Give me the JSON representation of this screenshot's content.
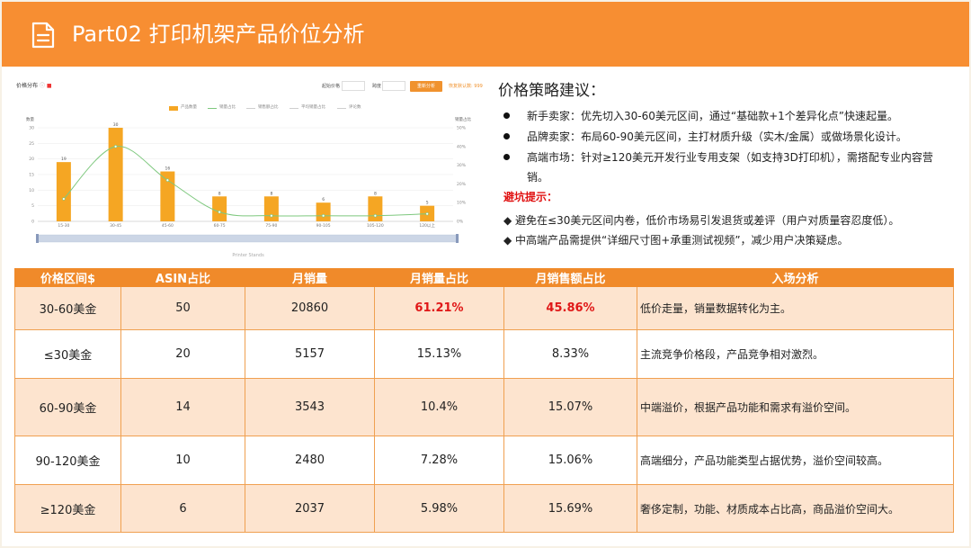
{
  "header": {
    "title": "Part02 打印机架产品价位分析",
    "icon": "document-icon"
  },
  "chart_panel": {
    "title": "价格分布",
    "controls": {
      "start_label": "起始价格",
      "span_label": "跨度",
      "button_label": "重新分析",
      "reset_link": "恢复默认数: 999"
    },
    "footer": "Printer Stands"
  },
  "chart_data": {
    "type": "bar",
    "categories": [
      "15-30",
      "30-45",
      "45-60",
      "60-75",
      "75-90",
      "90-105",
      "105-120",
      "120以上"
    ],
    "series": [
      {
        "name": "产品数量",
        "values": [
          19,
          30,
          16,
          8,
          8,
          6,
          8,
          5
        ],
        "data_labels": [
          "19",
          "30",
          "16",
          "8",
          "8",
          "6",
          "8",
          "5"
        ]
      },
      {
        "name": "销量占比",
        "values": [
          12,
          40,
          22,
          5,
          3,
          3,
          3,
          4
        ]
      }
    ],
    "legend_entries": [
      "产品数量",
      "销量占比",
      "销售额占比",
      "平均销量占比",
      "评论数"
    ],
    "ylabel": "数量",
    "y2label": "销量占比",
    "ylim": [
      0,
      30
    ],
    "y_ticks": [
      "0",
      "5",
      "10",
      "15",
      "20",
      "25",
      "30"
    ],
    "y2lim": [
      0,
      50
    ],
    "y2_ticks": [
      "0%",
      "10%",
      "20%",
      "30%",
      "40%",
      "50%"
    ],
    "legend_position": "top",
    "grid": true,
    "colors": {
      "bar": "#f5a623",
      "line": "#7ec87e"
    }
  },
  "advice": {
    "title": "价格策略建议：",
    "bullets": [
      "新手卖家：优先切入30-60美元区间，通过“基础款+1个差异化点”快速起量。",
      "品牌卖家：布局60-90美元区间，主打材质升级（实木/金属）或做场景化设计。",
      "高端市场：针对≥120美元开发行业专用支架（如支持3D打印机），需搭配专业内容营销。"
    ],
    "warning_title": "避坑提示：",
    "warnings": [
      "◆ 避免在≤30美元区间内卷，低价市场易引发退货或差评（用户对质量容忍度低）。",
      "◆ 中高端产品需提供“详细尺寸图+承重测试视频”，减少用户决策疑虑。"
    ]
  },
  "table": {
    "headers": [
      "价格区间$",
      "ASIN占比",
      "月销量",
      "月销量占比",
      "月销售额占比",
      "入场分析"
    ],
    "rows": [
      {
        "range": "30-60美金",
        "asin": "50",
        "sales": "20860",
        "sales_pct": "61.21%",
        "revenue_pct": "45.86%",
        "analysis": "低价走量，销量数据转化为主。"
      },
      {
        "range": "≤30美金",
        "asin": "20",
        "sales": "5157",
        "sales_pct": "15.13%",
        "revenue_pct": "8.33%",
        "analysis": "主流竞争价格段，产品竞争相对激烈。"
      },
      {
        "range": "60-90美金",
        "asin": "14",
        "sales": "3543",
        "sales_pct": "10.4%",
        "revenue_pct": "15.07%",
        "analysis": "中端溢价，根据产品功能和需求有溢价空间。"
      },
      {
        "range": "90-120美金",
        "asin": "10",
        "sales": "2480",
        "sales_pct": "7.28%",
        "revenue_pct": "15.06%",
        "analysis": "高端细分，产品功能类型占据优势，溢价空间较高。"
      },
      {
        "range": "≥120美金",
        "asin": "6",
        "sales": "2037",
        "sales_pct": "5.98%",
        "revenue_pct": "15.69%",
        "analysis": "奢侈定制，功能、材质成本占比高，商品溢价空间大。"
      }
    ],
    "colors": {
      "header": "#f08a2a",
      "odd_row": "#fde4cf",
      "highlight": "#e01818"
    }
  }
}
